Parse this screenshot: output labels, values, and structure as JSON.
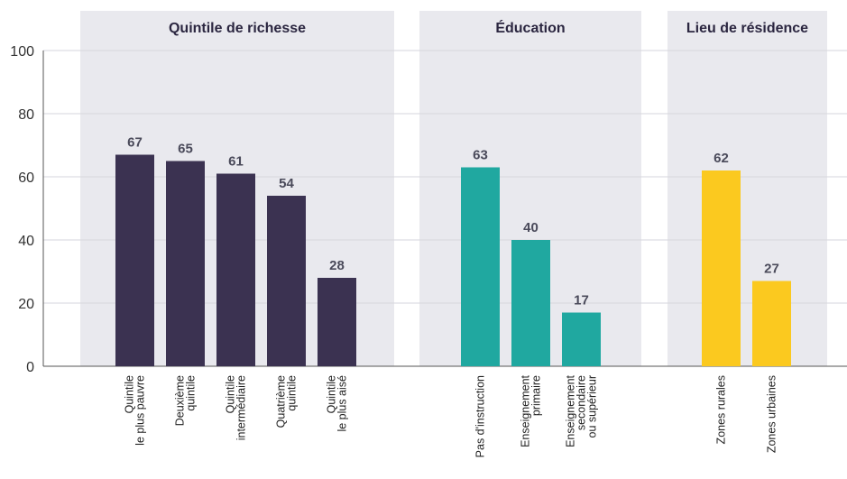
{
  "chart_data": {
    "type": "bar",
    "ylim": [
      0,
      100
    ],
    "yticks": [
      0,
      20,
      40,
      60,
      80,
      100
    ],
    "grid": true,
    "groups": [
      {
        "title": "Quintile de richesse",
        "color": "#3b3251",
        "categories": [
          [
            "Quintile",
            "le plus pauvre"
          ],
          [
            "Deuxième",
            "quintile"
          ],
          [
            "Quintile",
            "intermédiaire"
          ],
          [
            "Quatrième",
            "quintile"
          ],
          [
            "Quintile",
            "le plus aisé"
          ]
        ],
        "values": [
          67,
          65,
          61,
          54,
          28
        ]
      },
      {
        "title": "Éducation",
        "color": "#20a8a0",
        "categories": [
          [
            "Pas d'instruction"
          ],
          [
            "Enseignement",
            "primaire"
          ],
          [
            "Enseignement",
            "secondaire",
            "ou supérieur"
          ]
        ],
        "values": [
          63,
          40,
          17
        ]
      },
      {
        "title": "Lieu de résidence",
        "color": "#fbc91f",
        "categories": [
          [
            "Zones rurales"
          ],
          [
            "Zones urbaines"
          ]
        ],
        "values": [
          62,
          27
        ]
      }
    ]
  }
}
